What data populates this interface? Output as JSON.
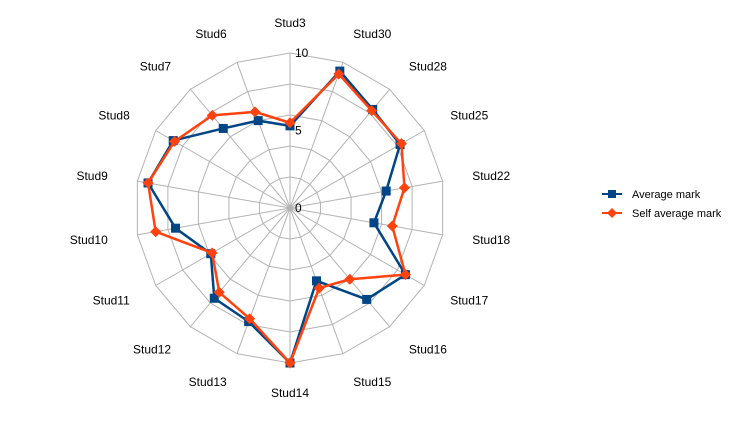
{
  "chart_data": {
    "type": "radar",
    "categories": [
      "Stud3",
      "Stud30",
      "Stud28",
      "Stud25",
      "Stud22",
      "Stud18",
      "Stud17",
      "Stud16",
      "Stud15",
      "Stud14",
      "Stud13",
      "Stud12",
      "Stud11",
      "Stud10",
      "Stud9",
      "Stud8",
      "Stud7",
      "Stud6"
    ],
    "rlim": [
      0,
      10
    ],
    "rticks": [
      "0",
      "5",
      "10"
    ],
    "legend_position": "right",
    "series": [
      {
        "name": "Average mark",
        "color": "#004586",
        "marker": "square",
        "values": [
          5.3,
          9.4,
          8.3,
          8.2,
          6.3,
          5.5,
          8.6,
          7.7,
          5.0,
          10.0,
          7.8,
          7.6,
          5.9,
          7.5,
          9.3,
          8.7,
          6.7,
          6.0
        ]
      },
      {
        "name": "Self average mark",
        "color": "#FF420E",
        "marker": "diamond",
        "values": [
          5.5,
          9.2,
          8.2,
          8.3,
          7.5,
          6.7,
          8.6,
          6.0,
          5.5,
          10.0,
          7.6,
          7.1,
          5.8,
          8.8,
          9.3,
          8.6,
          7.8,
          6.6
        ]
      }
    ]
  }
}
